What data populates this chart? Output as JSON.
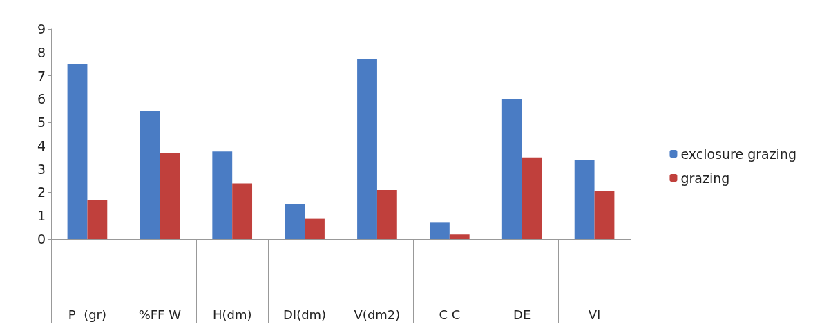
{
  "chart_data": {
    "type": "bar",
    "categories": [
      "P  (gr)",
      "%FF W",
      "H(dm)",
      "DI(dm)",
      "V(dm2)",
      "C C",
      "DE",
      "VI"
    ],
    "series": [
      {
        "name": "exclosure grazing",
        "color": "#4a7cc4",
        "values": [
          7.5,
          5.5,
          3.75,
          1.48,
          7.7,
          0.7,
          6.0,
          3.4
        ]
      },
      {
        "name": "grazing",
        "color": "#c0403c",
        "values": [
          1.68,
          3.68,
          2.38,
          0.87,
          2.1,
          0.2,
          3.5,
          2.05
        ]
      }
    ],
    "ylim": [
      0,
      9
    ],
    "yticks": [
      0,
      1,
      2,
      3,
      4,
      5,
      6,
      7,
      8,
      9
    ],
    "grid": false,
    "legend": "right"
  }
}
